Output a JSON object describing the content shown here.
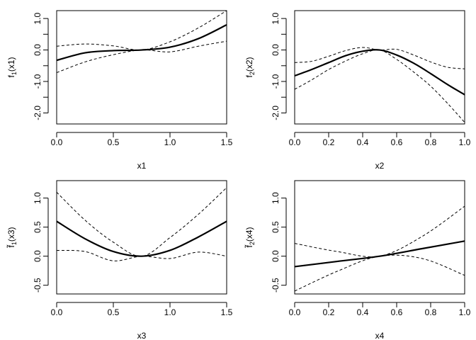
{
  "colors": {
    "line": "#000000",
    "background": "#ffffff"
  },
  "chart_data": [
    {
      "type": "line",
      "xlabel": "x1",
      "ylabel": {
        "base": "f",
        "sub": "1",
        "arg": "(x1)",
        "tilde": false
      },
      "xlim": [
        0,
        1.5
      ],
      "ylim": [
        -2.35,
        1.25
      ],
      "xticks": [
        0,
        0.5,
        1,
        1.5
      ],
      "xtick_labels": [
        "0.0",
        "0.5",
        "1.0",
        "1.5"
      ],
      "yticks": [
        -2,
        -1.5,
        -1,
        -0.5,
        0,
        0.5,
        1
      ],
      "ytick_labels": [
        "-2.0",
        "",
        "-1.0",
        "",
        "0.0",
        "",
        "1.0"
      ],
      "series": [
        {
          "name": "estimate",
          "style": "solid",
          "x": [
            0,
            0.25,
            0.5,
            0.75,
            1.0,
            1.25,
            1.5
          ],
          "y": [
            -0.33,
            -0.09,
            -0.02,
            0.0,
            0.09,
            0.36,
            0.8
          ]
        },
        {
          "name": "upper",
          "style": "dashed",
          "x": [
            0,
            0.25,
            0.5,
            0.75,
            1.0,
            1.25,
            1.5
          ],
          "y": [
            0.12,
            0.19,
            0.13,
            0.0,
            0.26,
            0.7,
            1.25
          ]
        },
        {
          "name": "lower",
          "style": "dashed",
          "x": [
            0,
            0.25,
            0.5,
            0.75,
            1.0,
            1.25,
            1.5
          ],
          "y": [
            -0.72,
            -0.38,
            -0.15,
            0.0,
            -0.06,
            0.12,
            0.28
          ]
        }
      ]
    },
    {
      "type": "line",
      "xlabel": "x2",
      "ylabel": {
        "base": "f",
        "sub": "2",
        "arg": "(x2)",
        "tilde": false
      },
      "xlim": [
        0,
        1
      ],
      "ylim": [
        -2.35,
        1.25
      ],
      "xticks": [
        0,
        0.2,
        0.4,
        0.6,
        0.8,
        1
      ],
      "xtick_labels": [
        "0.0",
        "0.2",
        "0.4",
        "0.6",
        "0.8",
        "1.0"
      ],
      "yticks": [
        -2,
        -1.5,
        -1,
        -0.5,
        0,
        0.5,
        1
      ],
      "ytick_labels": [
        "-2.0",
        "",
        "-1.0",
        "",
        "0.0",
        "",
        "1.0"
      ],
      "series": [
        {
          "name": "estimate",
          "style": "solid",
          "x": [
            0,
            0.1,
            0.2,
            0.3,
            0.4,
            0.5,
            0.6,
            0.7,
            0.8,
            0.9,
            1.0
          ],
          "y": [
            -0.82,
            -0.62,
            -0.4,
            -0.18,
            -0.04,
            0.0,
            -0.16,
            -0.42,
            -0.75,
            -1.1,
            -1.42
          ]
        },
        {
          "name": "upper",
          "style": "dashed",
          "x": [
            0,
            0.1,
            0.2,
            0.3,
            0.4,
            0.5,
            0.6,
            0.7,
            0.8,
            0.9,
            1.0
          ],
          "y": [
            -0.4,
            -0.36,
            -0.2,
            -0.02,
            0.08,
            0.0,
            0.02,
            -0.16,
            -0.38,
            -0.55,
            -0.6
          ]
        },
        {
          "name": "lower",
          "style": "dashed",
          "x": [
            0,
            0.1,
            0.2,
            0.3,
            0.4,
            0.5,
            0.6,
            0.7,
            0.8,
            0.9,
            1.0
          ],
          "y": [
            -1.25,
            -0.95,
            -0.62,
            -0.35,
            -0.12,
            0.0,
            -0.3,
            -0.7,
            -1.15,
            -1.7,
            -2.3
          ]
        }
      ]
    },
    {
      "type": "line",
      "xlabel": "x3",
      "ylabel": {
        "base": "f",
        "sub": "1",
        "arg": "(x3)",
        "tilde": true
      },
      "xlim": [
        0,
        1.5
      ],
      "ylim": [
        -0.65,
        1.3
      ],
      "xticks": [
        0,
        0.5,
        1,
        1.5
      ],
      "xtick_labels": [
        "0.0",
        "0.5",
        "1.0",
        "1.5"
      ],
      "yticks": [
        -0.5,
        0,
        0.5,
        1
      ],
      "ytick_labels": [
        "-0.5",
        "0.0",
        "0.5",
        "1.0"
      ],
      "series": [
        {
          "name": "estimate",
          "style": "solid",
          "x": [
            0,
            0.25,
            0.5,
            0.75,
            1.0,
            1.25,
            1.5
          ],
          "y": [
            0.6,
            0.3,
            0.08,
            0.0,
            0.1,
            0.33,
            0.6
          ]
        },
        {
          "name": "upper",
          "style": "dashed",
          "x": [
            0,
            0.25,
            0.5,
            0.75,
            1.0,
            1.25,
            1.5
          ],
          "y": [
            1.1,
            0.62,
            0.24,
            0.0,
            0.32,
            0.72,
            1.18
          ]
        },
        {
          "name": "lower",
          "style": "dashed",
          "x": [
            0,
            0.25,
            0.5,
            0.75,
            1.0,
            1.25,
            1.5
          ],
          "y": [
            0.1,
            0.08,
            -0.08,
            0.0,
            -0.04,
            0.07,
            0.0
          ]
        }
      ]
    },
    {
      "type": "line",
      "xlabel": "x4",
      "ylabel": {
        "base": "f",
        "sub": "2",
        "arg": "(x4)",
        "tilde": true
      },
      "xlim": [
        0,
        1
      ],
      "ylim": [
        -0.65,
        1.3
      ],
      "xticks": [
        0,
        0.2,
        0.4,
        0.6,
        0.8,
        1
      ],
      "xtick_labels": [
        "0.0",
        "0.2",
        "0.4",
        "0.6",
        "0.8",
        "1.0"
      ],
      "yticks": [
        -0.5,
        0,
        0.5,
        1
      ],
      "ytick_labels": [
        "-0.5",
        "0.0",
        "0.5",
        "1.0"
      ],
      "series": [
        {
          "name": "estimate",
          "style": "solid",
          "x": [
            0,
            0.25,
            0.5,
            0.75,
            1.0
          ],
          "y": [
            -0.18,
            -0.09,
            0.0,
            0.13,
            0.26
          ]
        },
        {
          "name": "upper",
          "style": "dashed",
          "x": [
            0,
            0.25,
            0.5,
            0.75,
            1.0
          ],
          "y": [
            0.22,
            0.08,
            0.0,
            0.34,
            0.86
          ]
        },
        {
          "name": "lower",
          "style": "dashed",
          "x": [
            0,
            0.25,
            0.5,
            0.75,
            1.0
          ],
          "y": [
            -0.6,
            -0.26,
            0.0,
            -0.04,
            -0.33
          ]
        }
      ]
    }
  ]
}
